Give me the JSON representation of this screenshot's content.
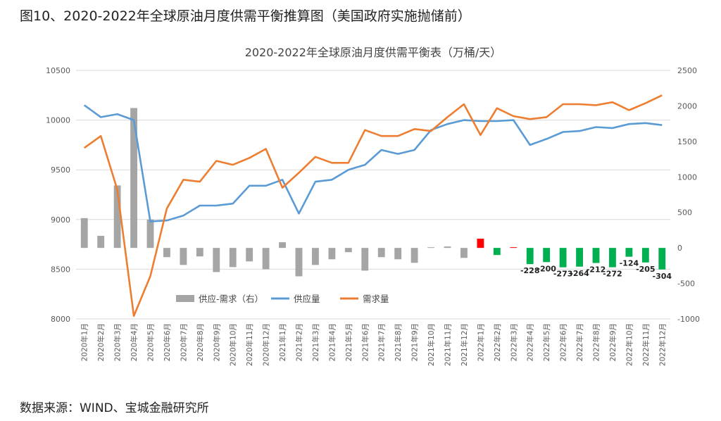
{
  "figure": {
    "title": "图10、2020-2022年全球原油月度供需平衡推算图（美国政府实施抛储前）",
    "source": "数据来源：WIND、宝城金融研究所"
  },
  "chart_data": {
    "type": "bar+line",
    "title": "2020-2022年全球原油月度供需平衡表（万桶/天）",
    "categories": [
      "2020年1月",
      "2020年2月",
      "2020年3月",
      "2020年4月",
      "2020年5月",
      "2020年6月",
      "2020年7月",
      "2020年8月",
      "2020年9月",
      "2020年10月",
      "2020年11月",
      "2020年12月",
      "2021年1月",
      "2021年2月",
      "2021年3月",
      "2021年4月",
      "2021年5月",
      "2021年6月",
      "2021年7月",
      "2021年8月",
      "2021年9月",
      "2021年10月",
      "2021年11月",
      "2021年12月",
      "2022年1月",
      "2022年2月",
      "2022年3月",
      "2022年4月",
      "2022年5月",
      "2022年6月",
      "2022年7月",
      "2022年8月",
      "2022年9月",
      "2022年10月",
      "2022年11月",
      "2022年12月"
    ],
    "left_axis": {
      "min": 8000,
      "max": 10500,
      "ticks": [
        "8000",
        "8500",
        "9000",
        "9500",
        "10000",
        "10500"
      ]
    },
    "right_axis": {
      "min": -1000,
      "max": 2500,
      "ticks": [
        "-1000",
        "-500",
        "0",
        "500",
        "1000",
        "1500",
        "2000",
        "2500"
      ]
    },
    "legend": {
      "position": "bottom-inside",
      "items": [
        {
          "label": "供应-需求（右）",
          "color": "#a5a5a5",
          "kind": "bar"
        },
        {
          "label": "供应量",
          "color": "#5b9bd5",
          "kind": "line"
        },
        {
          "label": "需求量",
          "color": "#ed7d31",
          "kind": "line"
        }
      ]
    },
    "series": [
      {
        "name": "供应-需求（右）",
        "axis": "right",
        "type": "bar",
        "values": [
          420,
          170,
          880,
          1970,
          400,
          -130,
          -240,
          -120,
          -340,
          -270,
          -190,
          -300,
          80,
          -400,
          -240,
          -160,
          -60,
          -320,
          -130,
          -160,
          -210,
          10,
          20,
          -140,
          130,
          -100,
          10,
          -228,
          -200,
          -273,
          -264,
          -212,
          -272,
          -124,
          -205,
          -304
        ]
      },
      {
        "name": "供应量",
        "axis": "left",
        "type": "line",
        "values": [
          10150,
          10030,
          10060,
          10000,
          8980,
          8990,
          9040,
          9140,
          9140,
          9160,
          9340,
          9340,
          9400,
          9060,
          9380,
          9400,
          9500,
          9550,
          9700,
          9660,
          9700,
          9900,
          9960,
          10000,
          9990,
          9990,
          10000,
          9750,
          9810,
          9880,
          9890,
          9930,
          9920,
          9960,
          9970,
          9950
        ]
      },
      {
        "name": "需求量",
        "axis": "left",
        "type": "line",
        "values": [
          9720,
          9840,
          9300,
          8030,
          8430,
          9110,
          9400,
          9380,
          9590,
          9550,
          9620,
          9710,
          9320,
          9470,
          9630,
          9570,
          9570,
          9900,
          9840,
          9840,
          9910,
          9890,
          10030,
          10160,
          9850,
          10120,
          10040,
          10010,
          10030,
          10160,
          10160,
          10150,
          10180,
          10100,
          10170,
          10250
        ]
      }
    ],
    "bar_colors": {
      "default": "#a5a5a5",
      "positive_2022": "#ff0000",
      "negative_2022": "#00b050"
    },
    "bar_labels": [
      {
        "index": 27,
        "text": "-228"
      },
      {
        "index": 28,
        "text": "-200"
      },
      {
        "index": 29,
        "text": "-273"
      },
      {
        "index": 30,
        "text": "-264"
      },
      {
        "index": 31,
        "text": "-212"
      },
      {
        "index": 32,
        "text": "-272"
      },
      {
        "index": 33,
        "text": "-124"
      },
      {
        "index": 34,
        "text": "-205"
      },
      {
        "index": 35,
        "text": "-304"
      }
    ],
    "grid": true
  }
}
